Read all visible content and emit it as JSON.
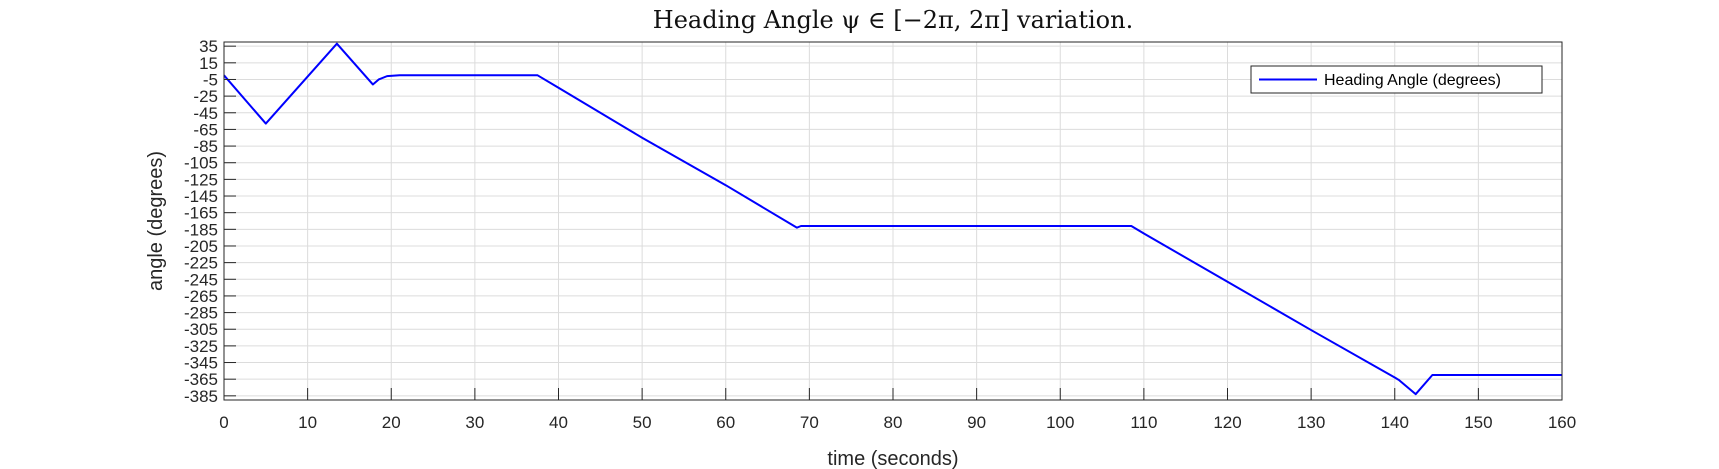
{
  "chart_data": {
    "type": "line",
    "title": "Heading Angle ψ ∈ [−2π, 2π] variation.",
    "xlabel": "time (seconds)",
    "ylabel": "angle (degrees)",
    "xlim": [
      0,
      160
    ],
    "ylim": [
      -390,
      40
    ],
    "xticks": [
      0,
      10,
      20,
      30,
      40,
      50,
      60,
      70,
      80,
      90,
      100,
      110,
      120,
      130,
      140,
      150,
      160
    ],
    "yticks": [
      35,
      15,
      -5,
      -25,
      -45,
      -65,
      -85,
      -105,
      -125,
      -145,
      -165,
      -185,
      -205,
      -225,
      -245,
      -265,
      -285,
      -305,
      -325,
      -345,
      -365,
      -385
    ],
    "grid": true,
    "legend_position": "top-right",
    "colors": {
      "series": "#0000ff",
      "grid": "#dcdcdc",
      "axis": "#262626"
    },
    "series": [
      {
        "name": "Heading Angle (degrees)",
        "x": [
          0,
          5,
          13.5,
          17.8,
          18.5,
          19.5,
          21,
          37.5,
          40,
          50,
          60,
          68.5,
          69,
          108.5,
          110,
          120,
          130,
          140,
          140.5,
          142.5,
          144.5,
          160
        ],
        "y": [
          0,
          -58,
          38,
          -11,
          -5,
          -1,
          0,
          0,
          -15,
          -75,
          -132,
          -183,
          -181,
          -181,
          -190,
          -248,
          -306,
          -363,
          -366,
          -383,
          -360,
          -360
        ]
      }
    ]
  }
}
